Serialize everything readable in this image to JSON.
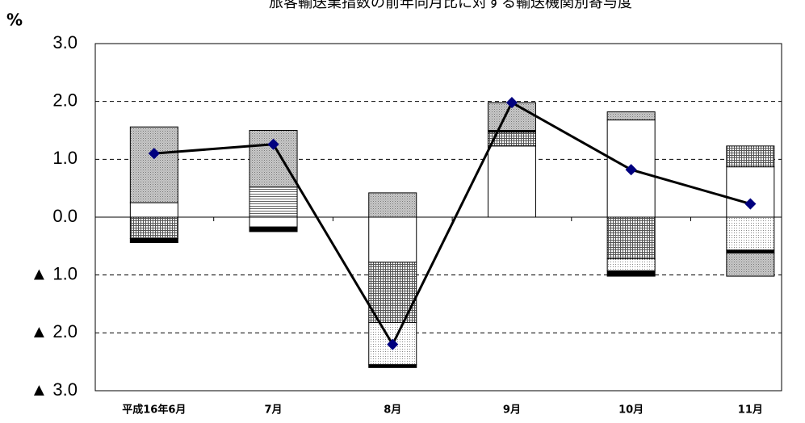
{
  "chart_data": {
    "type": "bar",
    "title": "旅客輸送業指数の前年同月比に対する輸送機関別寄与度",
    "y_unit": "%",
    "categories": [
      "平成16年6月",
      "7月",
      "8月",
      "9月",
      "10月",
      "11月"
    ],
    "series": [
      {
        "color": "#ffffff",
        "pattern": "solid",
        "values": [
          0.25,
          -0.17,
          -0.78,
          1.23,
          1.68,
          0.87
        ]
      },
      {
        "color": "#ffffff",
        "pattern": "hlines",
        "values": [
          0,
          0.52,
          0,
          0,
          0,
          0
        ]
      },
      {
        "color": "#ffffff",
        "pattern": "grid",
        "values": [
          -0.37,
          0,
          -1.04,
          0.24,
          -0.72,
          0.36
        ]
      },
      {
        "color": "#ffffff",
        "pattern": "dots",
        "values": [
          0,
          0,
          -0.73,
          0,
          -0.21,
          -0.57
        ]
      },
      {
        "color": "#000000",
        "pattern": "solid",
        "values": [
          -0.07,
          -0.08,
          -0.05,
          0.03,
          -0.09,
          -0.05
        ]
      },
      {
        "color": "#b4b4b4",
        "pattern": "stipple",
        "values": [
          1.31,
          0.98,
          0.42,
          0.48,
          0.14,
          -0.4
        ]
      }
    ],
    "line": {
      "type": "line",
      "color": "#000000",
      "marker_color": "#00007f",
      "values": [
        1.1,
        1.26,
        -2.2,
        1.98,
        0.82,
        0.23
      ]
    },
    "ylim": [
      -3,
      3
    ],
    "yticks": [
      {
        "value": 3,
        "label": "3.0"
      },
      {
        "value": 2,
        "label": "2.0"
      },
      {
        "value": 1,
        "label": "1.0"
      },
      {
        "value": 0,
        "label": "0.0"
      },
      {
        "value": -1,
        "label": "▲ 1.0"
      },
      {
        "value": -2,
        "label": "▲ 2.0"
      },
      {
        "value": -3,
        "label": "▲ 3.0"
      }
    ],
    "grid": true
  }
}
